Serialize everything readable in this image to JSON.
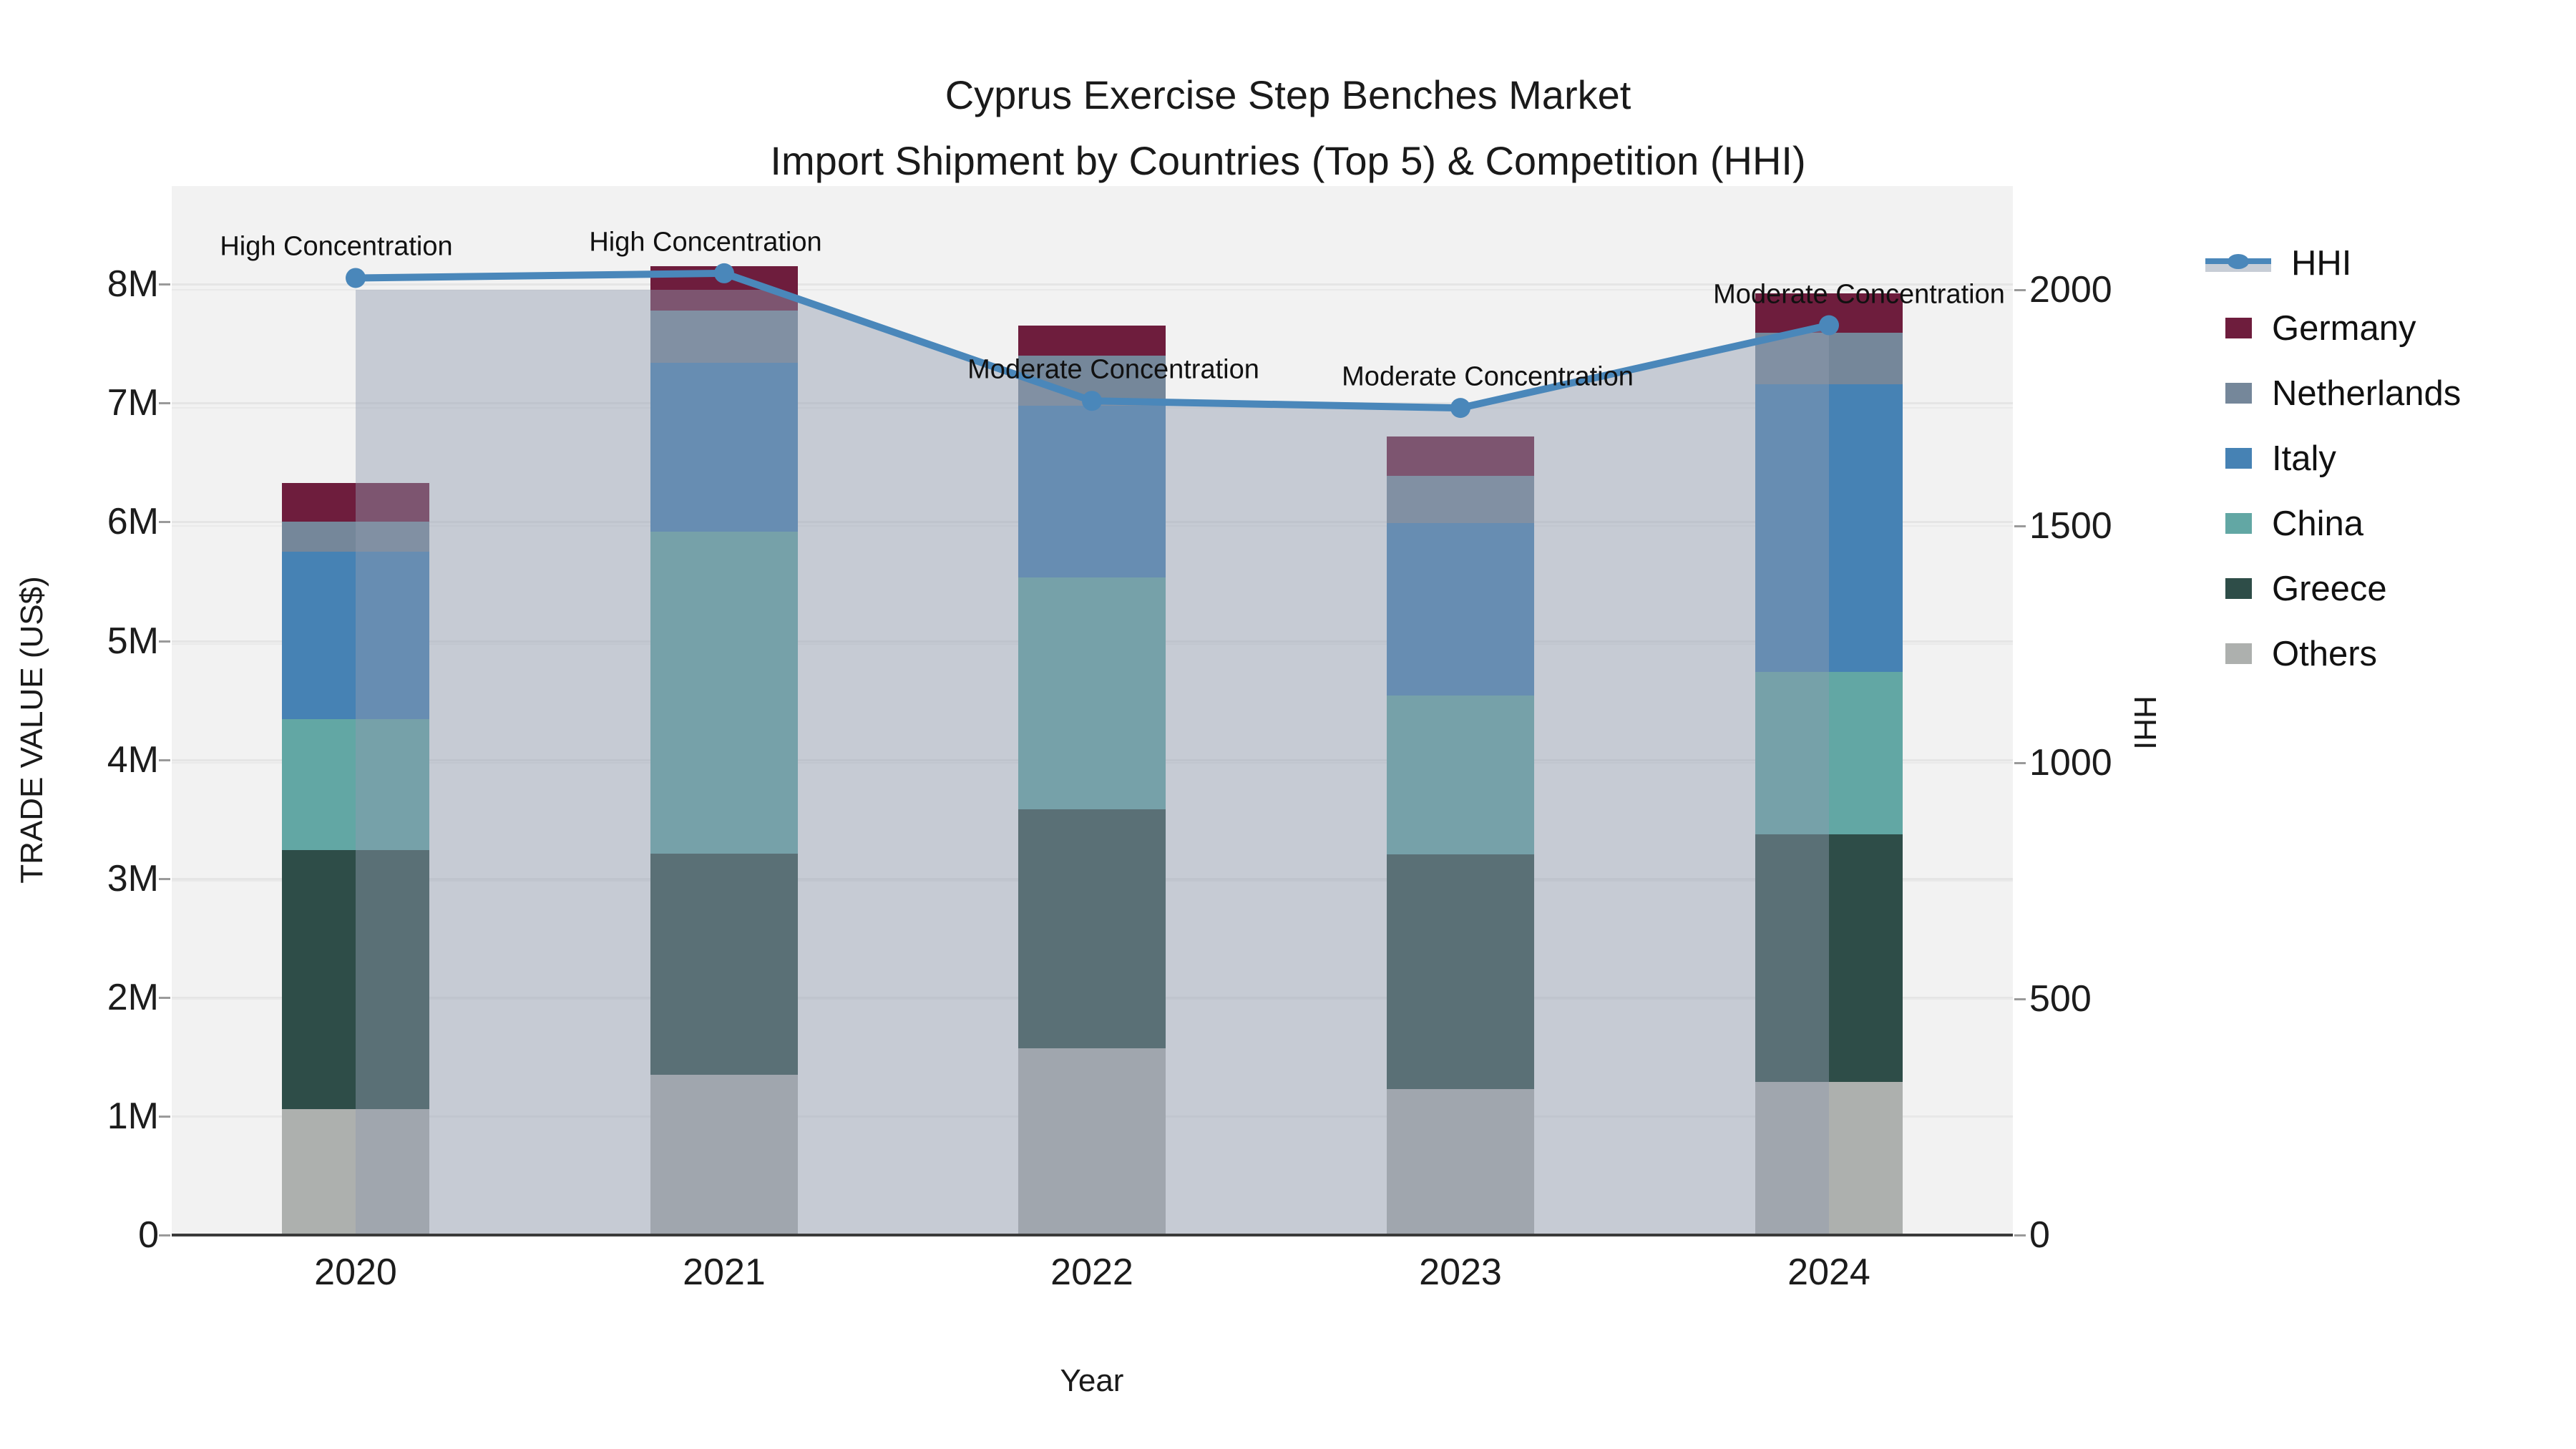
{
  "title": {
    "line1": "Cyprus Exercise Step Benches Market",
    "line2": "Import Shipment by Countries (Top 5) & Competition (HHI)"
  },
  "axes": {
    "y_left": {
      "title": "TRADE VALUE (US$)",
      "ticks": [
        "0",
        "1M",
        "2M",
        "3M",
        "4M",
        "5M",
        "6M",
        "7M",
        "8M"
      ]
    },
    "y_right": {
      "title": "HHI",
      "ticks": [
        "0",
        "500",
        "1000",
        "1500",
        "2000"
      ],
      "tick_values": [
        0,
        500,
        1000,
        1500,
        2000
      ]
    },
    "x": {
      "title": "Year",
      "ticks": [
        "2020",
        "2021",
        "2022",
        "2023",
        "2024"
      ]
    }
  },
  "legend": {
    "items": [
      {
        "label": "HHI",
        "type": "line"
      },
      {
        "label": "Germany",
        "type": "swatch"
      },
      {
        "label": "Netherlands",
        "type": "swatch"
      },
      {
        "label": "Italy",
        "type": "swatch"
      },
      {
        "label": "China",
        "type": "swatch"
      },
      {
        "label": "Greece",
        "type": "swatch"
      },
      {
        "label": "Others",
        "type": "swatch"
      }
    ]
  },
  "colors": {
    "background": "#ffffff",
    "plot_background": "#f2f2f2",
    "gridline": "#e5e5e5",
    "axis_line": "#3a3a3a",
    "hhi_line": "#4a87ba",
    "hhi_fill": "rgba(144,155,175,0.45)",
    "series": {
      "Germany": "#6e1d3d",
      "Netherlands": "#75879a",
      "Italy": "#4682b4",
      "China": "#62a7a4",
      "Greece": "#2e4d48",
      "Others": "#adb0ae"
    }
  },
  "chart_data": {
    "type": "bar",
    "subtype": "stacked-bar-with-line",
    "title": "Cyprus Exercise Step Benches Market — Import Shipment by Countries (Top 5) & Competition (HHI)",
    "xlabel": "Year",
    "ylabel": "TRADE VALUE (US$)",
    "ylabel_right": "HHI",
    "categories": [
      "2020",
      "2021",
      "2022",
      "2023",
      "2024"
    ],
    "value_unit": "million US$",
    "series": [
      {
        "name": "Others",
        "values": [
          1.06,
          1.35,
          1.57,
          1.23,
          1.29
        ]
      },
      {
        "name": "Greece",
        "values": [
          2.18,
          1.86,
          2.01,
          1.97,
          2.08
        ]
      },
      {
        "name": "China",
        "values": [
          1.1,
          2.71,
          1.95,
          1.34,
          1.37
        ]
      },
      {
        "name": "Italy",
        "values": [
          1.41,
          1.42,
          1.45,
          1.45,
          2.42
        ]
      },
      {
        "name": "Netherlands",
        "values": [
          0.25,
          0.44,
          0.42,
          0.4,
          0.43
        ]
      },
      {
        "name": "Germany",
        "values": [
          0.33,
          0.37,
          0.25,
          0.33,
          0.33
        ]
      }
    ],
    "bar_totals": [
      6.33,
      8.15,
      7.65,
      6.72,
      7.92
    ],
    "line_series": {
      "name": "HHI",
      "axis": "right",
      "values": [
        2025,
        2035,
        1765,
        1750,
        1925
      ]
    },
    "ylim_left_millions": [
      0,
      8.83
    ],
    "ylim_right": [
      0,
      2219
    ],
    "grid": true,
    "legend_position": "right",
    "annotations": [
      {
        "category": "2020",
        "text": "High Concentration"
      },
      {
        "category": "2021",
        "text": "High Concentration"
      },
      {
        "category": "2022",
        "text": "Moderate Concentration"
      },
      {
        "category": "2023",
        "text": "Moderate Concentration"
      },
      {
        "category": "2024",
        "text": "Moderate Concentration"
      }
    ]
  }
}
